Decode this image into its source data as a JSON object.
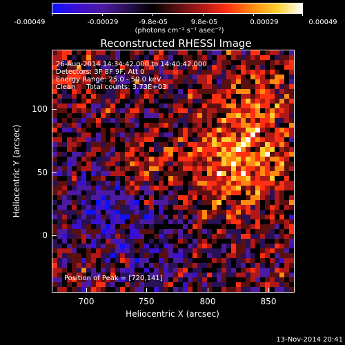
{
  "colorbar": {
    "colors": [
      "#1010ff",
      "#3a10d0",
      "#4b1aa0",
      "#2a1055",
      "#000000",
      "#5a1010",
      "#b01818",
      "#ff3010",
      "#ff8a10",
      "#ffd030",
      "#ffffff"
    ],
    "ticks": [
      "-0.00049",
      "-0.00029",
      "-9.8e-05",
      "9.8e-05",
      "0.00029",
      "0.00049"
    ],
    "units": "(photons cm⁻² s⁻¹ asec⁻²)"
  },
  "title": "Reconstructed RHESSI Image",
  "info": {
    "time_range": "26-Aug-2014 14:34:42.000 to 14:40:42.000",
    "detectors": "Detectors: 3F 8F 9F, Att 0",
    "energy": "Energy Range: 25.0 - 50.0 keV",
    "clean": "Clean     Total counts: 3.73E+03",
    "peak": "Position of Peak = [720,141]"
  },
  "axes": {
    "xlabel": "Heliocentric X (arcsec)",
    "ylabel": "Heliocentric Y (arcsec)",
    "xticks": [
      "700",
      "750",
      "800",
      "850"
    ],
    "yticks": [
      "100",
      "50",
      "0"
    ]
  },
  "footer": "13-Nov-2014 20:41"
}
